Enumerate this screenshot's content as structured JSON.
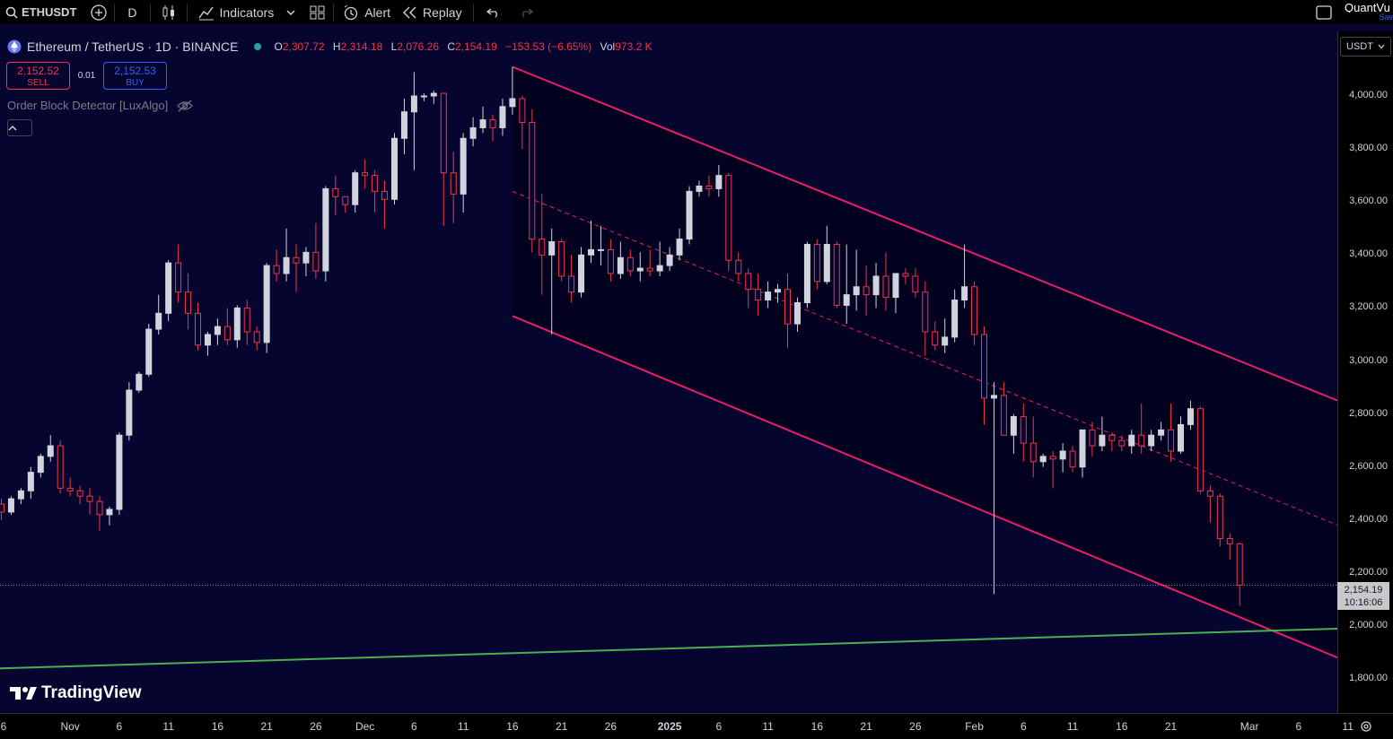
{
  "toolbar": {
    "symbol": "ETHUSDT",
    "interval": "D",
    "indicators_label": "Indicators",
    "alert_label": "Alert",
    "replay_label": "Replay",
    "user_label": "QuantVu",
    "save_label": "Sav"
  },
  "legend": {
    "title": "Ethereum / TetherUS · 1D · BINANCE",
    "o_label": "O",
    "o_value": "2,307.72",
    "h_label": "H",
    "h_value": "2,314.18",
    "l_label": "L",
    "l_value": "2,076.26",
    "c_label": "C",
    "c_value": "2,154.19",
    "change": "−153.53 (−6.65%)",
    "vol_label": "Vol",
    "vol_value": "973.2 K"
  },
  "trade": {
    "sell_price": "2,152.52",
    "sell_label": "SELL",
    "spread": "0.01",
    "buy_price": "2,152.53",
    "buy_label": "BUY"
  },
  "indicator": {
    "name": "Order Block Detector [LuxAlgo]"
  },
  "price_axis": {
    "currency": "USDT",
    "labels": [
      "4,000.00",
      "3,800.00",
      "3,600.00",
      "3,400.00",
      "3,200.00",
      "3,000.00",
      "2,800.00",
      "2,600.00",
      "2,400.00",
      "2,200.00",
      "2,000.00",
      "1,800.00"
    ],
    "current_price": "2,154.19",
    "countdown": "10:16:06"
  },
  "time_axis": {
    "labels": [
      "6",
      "Nov",
      "6",
      "11",
      "16",
      "21",
      "26",
      "Dec",
      "6",
      "11",
      "16",
      "21",
      "26",
      "2025",
      "6",
      "11",
      "16",
      "21",
      "26",
      "Feb",
      "6",
      "11",
      "16",
      "21",
      "Mar",
      "6",
      "11"
    ]
  },
  "branding": {
    "logo_text": "TradingView"
  },
  "colors": {
    "up": "#d1d4dc",
    "down": "#f23645",
    "channel": "#e91e63",
    "trendline": "#4caf50",
    "background": "#050530"
  },
  "chart_data": {
    "type": "candlestick",
    "symbol": "ETHUSDT",
    "interval": "1D",
    "ylim": [
      1750,
      4150
    ],
    "days": [
      [
        "2024-10-25",
        2460,
        2480,
        2400,
        2430
      ],
      [
        "2024-10-26",
        2430,
        2490,
        2420,
        2480
      ],
      [
        "2024-10-27",
        2480,
        2520,
        2460,
        2510
      ],
      [
        "2024-10-28",
        2510,
        2600,
        2480,
        2580
      ],
      [
        "2024-10-29",
        2580,
        2650,
        2560,
        2640
      ],
      [
        "2024-10-30",
        2640,
        2720,
        2620,
        2680
      ],
      [
        "2024-10-31",
        2680,
        2700,
        2500,
        2520
      ],
      [
        "2024-11-01",
        2520,
        2560,
        2490,
        2510
      ],
      [
        "2024-11-02",
        2510,
        2530,
        2460,
        2490
      ],
      [
        "2024-11-03",
        2490,
        2520,
        2420,
        2470
      ],
      [
        "2024-11-04",
        2470,
        2490,
        2360,
        2420
      ],
      [
        "2024-11-05",
        2420,
        2450,
        2380,
        2440
      ],
      [
        "2024-11-06",
        2440,
        2730,
        2420,
        2720
      ],
      [
        "2024-11-07",
        2720,
        2920,
        2700,
        2890
      ],
      [
        "2024-11-08",
        2890,
        2960,
        2880,
        2950
      ],
      [
        "2024-11-09",
        2950,
        3140,
        2940,
        3120
      ],
      [
        "2024-11-10",
        3120,
        3250,
        3100,
        3180
      ],
      [
        "2024-11-11",
        3180,
        3380,
        3150,
        3370
      ],
      [
        "2024-11-12",
        3370,
        3440,
        3220,
        3260
      ],
      [
        "2024-11-13",
        3260,
        3330,
        3120,
        3180
      ],
      [
        "2024-11-14",
        3180,
        3220,
        3040,
        3060
      ],
      [
        "2024-11-15",
        3060,
        3110,
        3020,
        3100
      ],
      [
        "2024-11-16",
        3100,
        3160,
        3060,
        3130
      ],
      [
        "2024-11-17",
        3130,
        3200,
        3060,
        3080
      ],
      [
        "2024-11-18",
        3080,
        3210,
        3050,
        3200
      ],
      [
        "2024-11-19",
        3200,
        3230,
        3060,
        3110
      ],
      [
        "2024-11-20",
        3110,
        3130,
        3040,
        3070
      ],
      [
        "2024-11-21",
        3070,
        3370,
        3030,
        3360
      ],
      [
        "2024-11-22",
        3360,
        3420,
        3300,
        3330
      ],
      [
        "2024-11-23",
        3330,
        3500,
        3300,
        3390
      ],
      [
        "2024-11-24",
        3390,
        3440,
        3260,
        3370
      ],
      [
        "2024-11-25",
        3370,
        3430,
        3320,
        3410
      ],
      [
        "2024-11-26",
        3410,
        3520,
        3310,
        3340
      ],
      [
        "2024-11-27",
        3340,
        3660,
        3300,
        3650
      ],
      [
        "2024-11-28",
        3650,
        3700,
        3550,
        3620
      ],
      [
        "2024-11-29",
        3620,
        3620,
        3560,
        3590
      ],
      [
        "2024-11-30",
        3590,
        3720,
        3560,
        3710
      ],
      [
        "2024-12-01",
        3710,
        3760,
        3650,
        3700
      ],
      [
        "2024-12-02",
        3700,
        3720,
        3560,
        3640
      ],
      [
        "2024-12-03",
        3640,
        3680,
        3500,
        3610
      ],
      [
        "2024-12-04",
        3610,
        3860,
        3590,
        3840
      ],
      [
        "2024-12-05",
        3840,
        3990,
        3780,
        3940
      ],
      [
        "2024-12-06",
        3940,
        4090,
        3720,
        4000
      ],
      [
        "2024-12-07",
        4000,
        4010,
        3980,
        4000
      ],
      [
        "2024-12-08",
        4000,
        4020,
        3970,
        4010
      ],
      [
        "2024-12-09",
        4010,
        4010,
        3510,
        3710
      ],
      [
        "2024-12-10",
        3710,
        3790,
        3520,
        3630
      ],
      [
        "2024-12-11",
        3630,
        3860,
        3560,
        3840
      ],
      [
        "2024-12-12",
        3840,
        3920,
        3810,
        3880
      ],
      [
        "2024-12-13",
        3880,
        3960,
        3860,
        3910
      ],
      [
        "2024-12-14",
        3910,
        3930,
        3830,
        3880
      ],
      [
        "2024-12-15",
        3880,
        3990,
        3850,
        3960
      ],
      [
        "2024-12-16",
        3960,
        4110,
        3930,
        3990
      ],
      [
        "2024-12-17",
        3990,
        4000,
        3800,
        3900
      ],
      [
        "2024-12-18",
        3900,
        3950,
        3410,
        3460
      ],
      [
        "2024-12-19",
        3460,
        3630,
        3250,
        3400
      ],
      [
        "2024-12-20",
        3400,
        3500,
        3100,
        3450
      ],
      [
        "2024-12-21",
        3450,
        3460,
        3300,
        3320
      ],
      [
        "2024-12-22",
        3320,
        3400,
        3220,
        3260
      ],
      [
        "2024-12-23",
        3260,
        3430,
        3240,
        3400
      ],
      [
        "2024-12-24",
        3400,
        3530,
        3370,
        3420
      ],
      [
        "2024-12-25",
        3420,
        3510,
        3360,
        3420
      ],
      [
        "2024-12-26",
        3420,
        3460,
        3300,
        3330
      ],
      [
        "2024-12-27",
        3330,
        3450,
        3310,
        3390
      ],
      [
        "2024-12-28",
        3390,
        3420,
        3320,
        3340
      ],
      [
        "2024-12-29",
        3340,
        3410,
        3300,
        3350
      ],
      [
        "2024-12-30",
        3350,
        3420,
        3320,
        3340
      ],
      [
        "2024-12-31",
        3340,
        3450,
        3320,
        3360
      ],
      [
        "2025-01-01",
        3360,
        3430,
        3340,
        3400
      ],
      [
        "2025-01-02",
        3400,
        3500,
        3380,
        3460
      ],
      [
        "2025-01-03",
        3460,
        3660,
        3440,
        3640
      ],
      [
        "2025-01-04",
        3640,
        3680,
        3620,
        3660
      ],
      [
        "2025-01-05",
        3660,
        3700,
        3620,
        3650
      ],
      [
        "2025-01-06",
        3650,
        3740,
        3620,
        3700
      ],
      [
        "2025-01-07",
        3700,
        3710,
        3340,
        3380
      ],
      [
        "2025-01-08",
        3380,
        3410,
        3300,
        3330
      ],
      [
        "2025-01-09",
        3330,
        3350,
        3200,
        3270
      ],
      [
        "2025-01-10",
        3270,
        3330,
        3170,
        3230
      ],
      [
        "2025-01-11",
        3230,
        3300,
        3200,
        3260
      ],
      [
        "2025-01-12",
        3260,
        3290,
        3220,
        3270
      ],
      [
        "2025-01-13",
        3270,
        3330,
        3050,
        3140
      ],
      [
        "2025-01-14",
        3140,
        3240,
        3110,
        3220
      ],
      [
        "2025-01-15",
        3220,
        3450,
        3200,
        3440
      ],
      [
        "2025-01-16",
        3440,
        3460,
        3270,
        3300
      ],
      [
        "2025-01-17",
        3300,
        3510,
        3290,
        3440
      ],
      [
        "2025-01-18",
        3440,
        3450,
        3200,
        3210
      ],
      [
        "2025-01-19",
        3210,
        3440,
        3140,
        3250
      ],
      [
        "2025-01-20",
        3250,
        3420,
        3190,
        3280
      ],
      [
        "2025-01-21",
        3280,
        3360,
        3170,
        3250
      ],
      [
        "2025-01-22",
        3250,
        3370,
        3200,
        3320
      ],
      [
        "2025-01-23",
        3320,
        3410,
        3190,
        3240
      ],
      [
        "2025-01-24",
        3240,
        3320,
        3180,
        3330
      ],
      [
        "2025-01-25",
        3330,
        3350,
        3290,
        3320
      ],
      [
        "2025-01-26",
        3320,
        3350,
        3240,
        3260
      ],
      [
        "2025-01-27",
        3260,
        3300,
        3020,
        3110
      ],
      [
        "2025-01-28",
        3110,
        3150,
        3040,
        3060
      ],
      [
        "2025-01-29",
        3060,
        3160,
        3030,
        3090
      ],
      [
        "2025-01-30",
        3090,
        3270,
        3070,
        3230
      ],
      [
        "2025-01-31",
        3230,
        3440,
        3200,
        3280
      ],
      [
        "2025-02-01",
        3280,
        3300,
        3060,
        3100
      ],
      [
        "2025-02-02",
        3100,
        3130,
        2760,
        2860
      ],
      [
        "2025-02-03",
        2860,
        2920,
        2120,
        2870
      ],
      [
        "2025-02-04",
        2870,
        2920,
        2740,
        2720
      ],
      [
        "2025-02-05",
        2720,
        2800,
        2650,
        2790
      ],
      [
        "2025-02-06",
        2790,
        2840,
        2620,
        2690
      ],
      [
        "2025-02-07",
        2690,
        2790,
        2560,
        2620
      ],
      [
        "2025-02-08",
        2620,
        2650,
        2600,
        2640
      ],
      [
        "2025-02-09",
        2640,
        2660,
        2520,
        2630
      ],
      [
        "2025-02-10",
        2630,
        2690,
        2580,
        2660
      ],
      [
        "2025-02-11",
        2660,
        2680,
        2580,
        2600
      ],
      [
        "2025-02-12",
        2600,
        2720,
        2560,
        2740
      ],
      [
        "2025-02-13",
        2740,
        2770,
        2640,
        2680
      ],
      [
        "2025-02-14",
        2680,
        2790,
        2660,
        2720
      ],
      [
        "2025-02-15",
        2720,
        2730,
        2660,
        2700
      ],
      [
        "2025-02-16",
        2700,
        2720,
        2660,
        2680
      ],
      [
        "2025-02-17",
        2680,
        2740,
        2650,
        2720
      ],
      [
        "2025-02-18",
        2720,
        2840,
        2650,
        2680
      ],
      [
        "2025-02-19",
        2680,
        2740,
        2660,
        2720
      ],
      [
        "2025-02-20",
        2720,
        2770,
        2700,
        2740
      ],
      [
        "2025-02-21",
        2740,
        2840,
        2620,
        2660
      ],
      [
        "2025-02-22",
        2660,
        2790,
        2650,
        2760
      ],
      [
        "2025-02-23",
        2760,
        2850,
        2740,
        2820
      ],
      [
        "2025-02-24",
        2820,
        2830,
        2500,
        2510
      ],
      [
        "2025-02-25",
        2510,
        2530,
        2390,
        2490
      ],
      [
        "2025-02-26",
        2490,
        2500,
        2300,
        2330
      ],
      [
        "2025-02-27",
        2330,
        2350,
        2250,
        2310
      ],
      [
        "2025-02-28",
        2310,
        2314,
        2076,
        2154
      ]
    ]
  }
}
